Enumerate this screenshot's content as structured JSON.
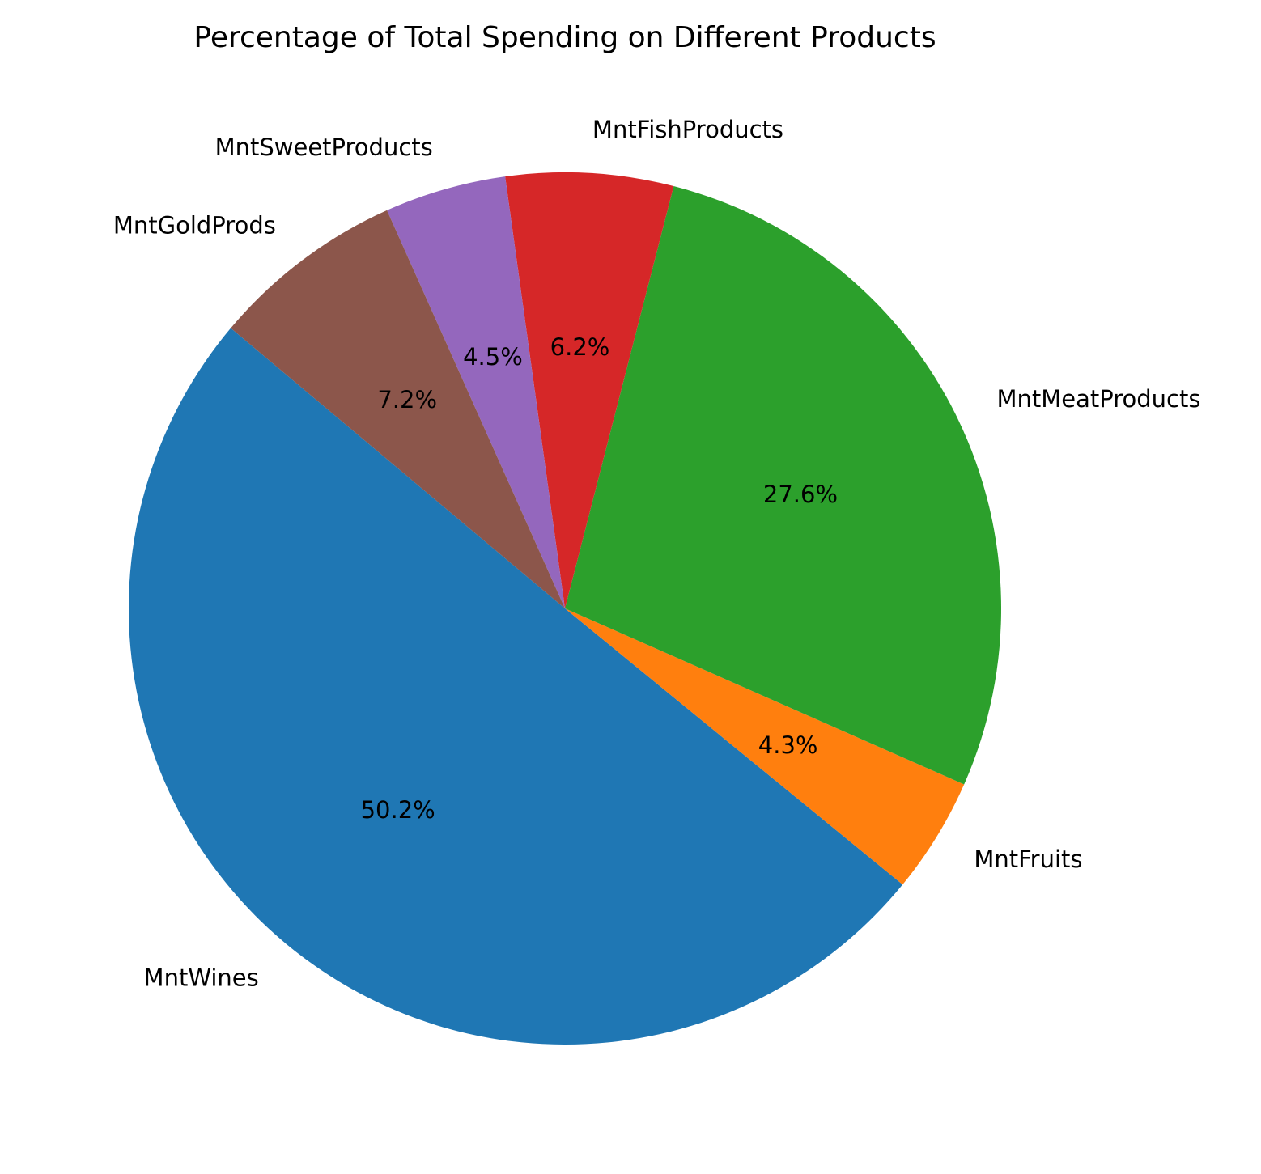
{
  "chart_data": {
    "type": "pie",
    "title": "Percentage of Total Spending on Different Products",
    "slices": [
      {
        "label": "MntWines",
        "value": 50.2,
        "pct_text": "50.2%",
        "color": "#1f77b4"
      },
      {
        "label": "MntFruits",
        "value": 4.3,
        "pct_text": "4.3%",
        "color": "#ff7f0e"
      },
      {
        "label": "MntMeatProducts",
        "value": 27.6,
        "pct_text": "27.6%",
        "color": "#2ca02c"
      },
      {
        "label": "MntFishProducts",
        "value": 6.2,
        "pct_text": "6.2%",
        "color": "#d62728"
      },
      {
        "label": "MntSweetProducts",
        "value": 4.5,
        "pct_text": "4.5%",
        "color": "#9467bd"
      },
      {
        "label": "MntGoldProds",
        "value": 7.2,
        "pct_text": "7.2%",
        "color": "#8c564b"
      }
    ],
    "start_angle_deg": 140,
    "direction": "counterclockwise",
    "legend": "none"
  }
}
